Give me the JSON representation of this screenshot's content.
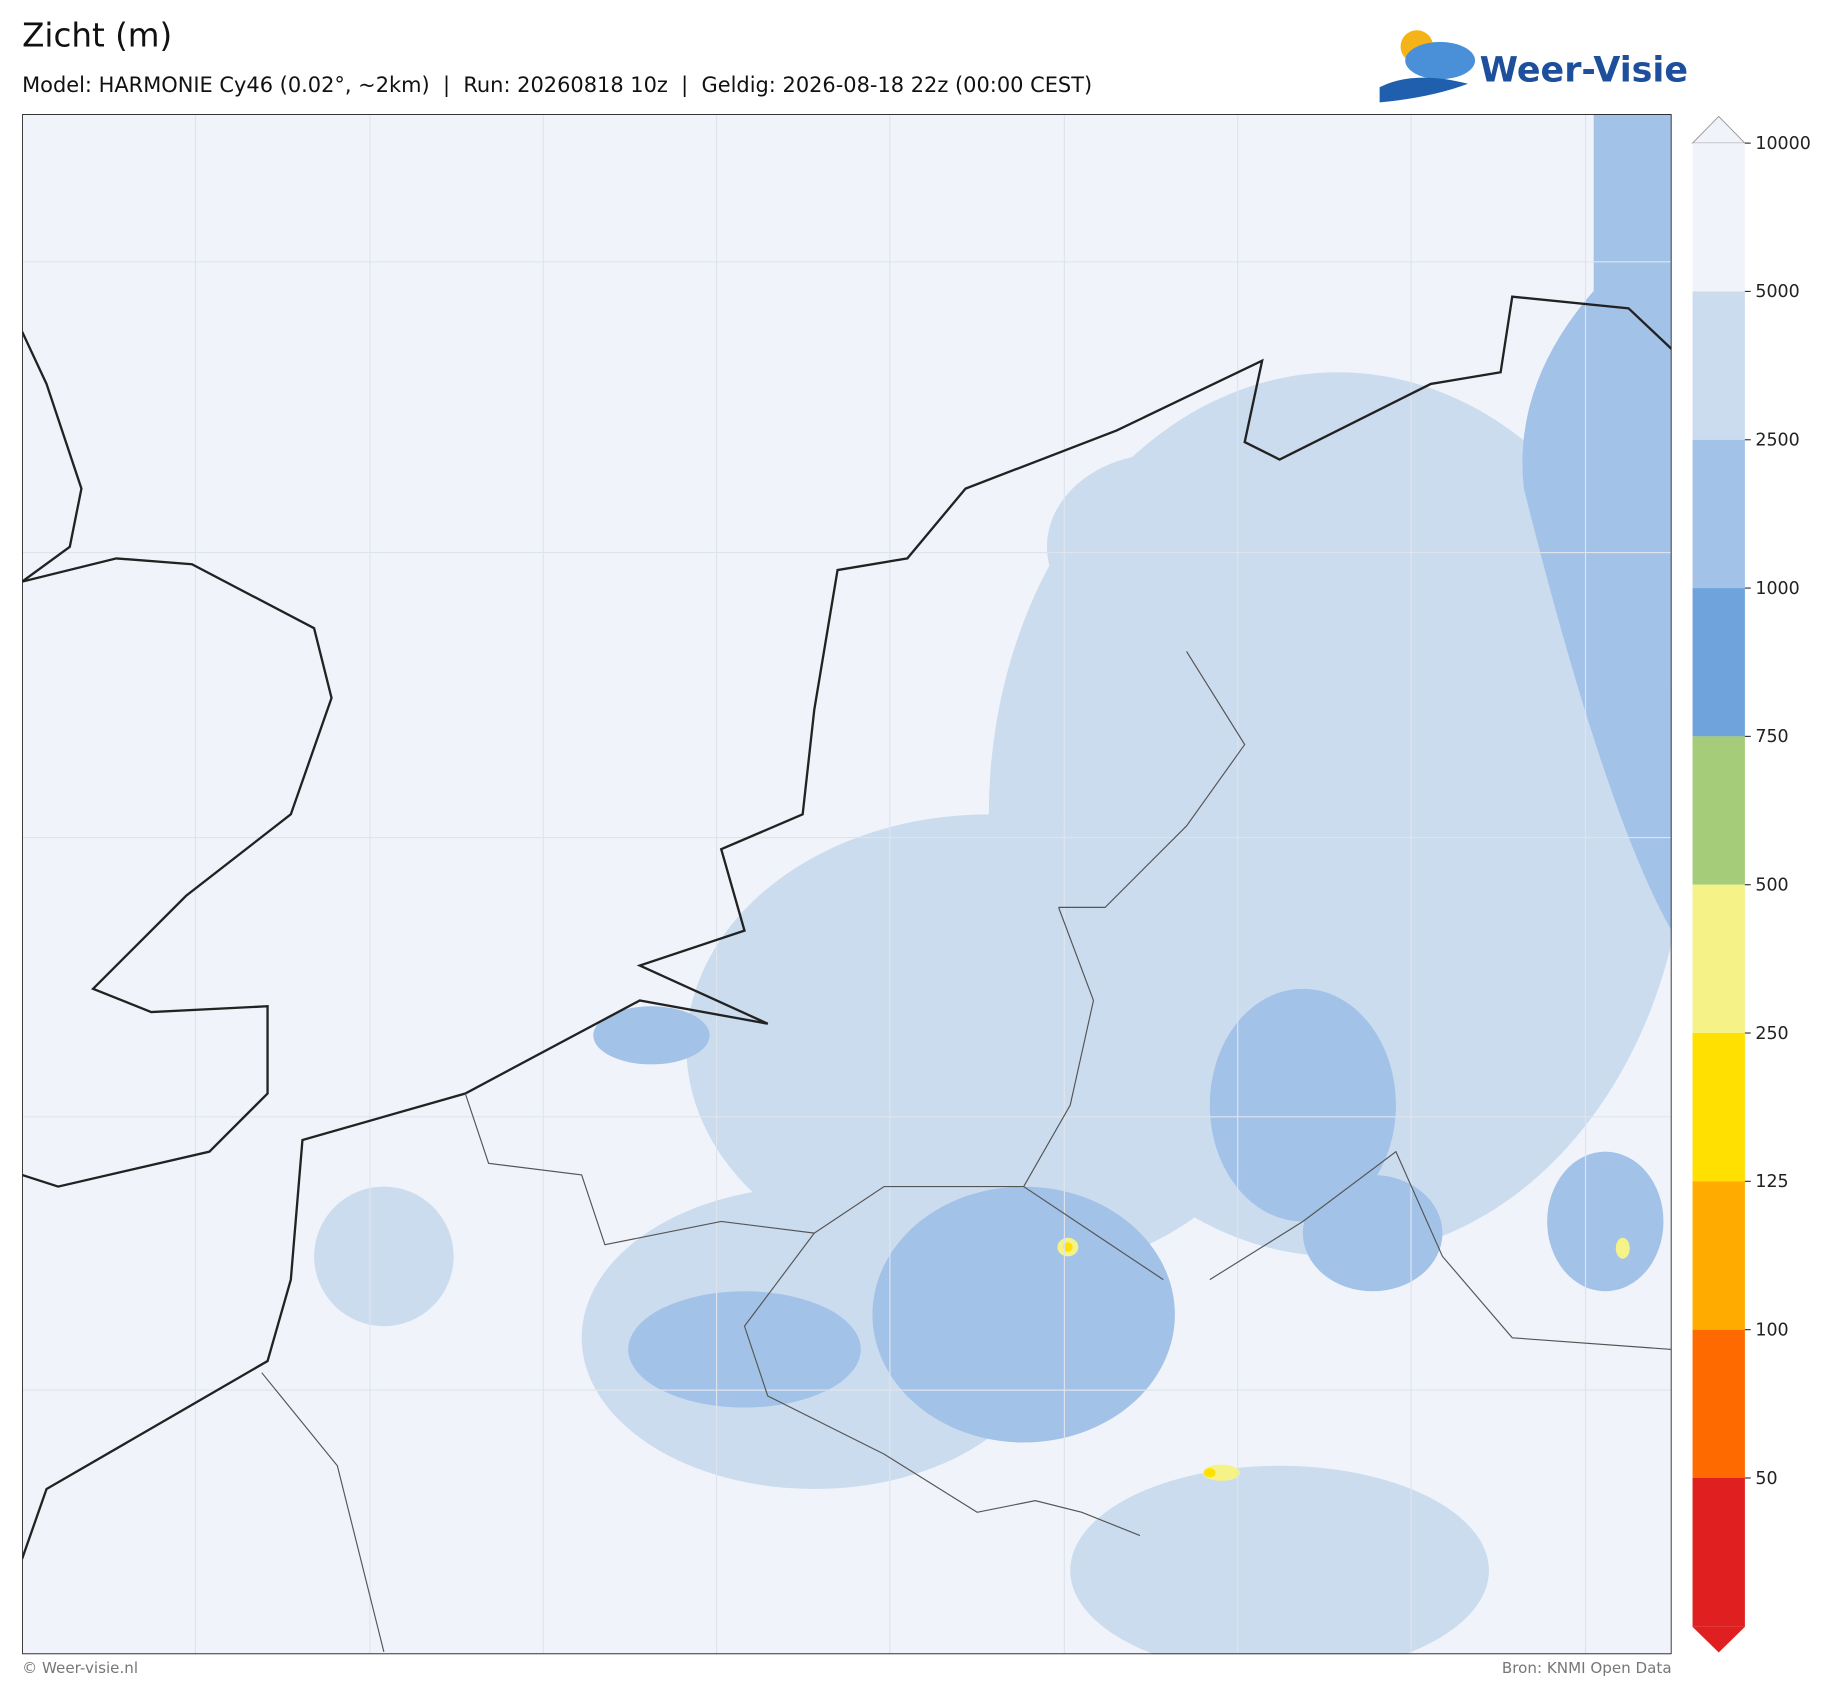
{
  "header": {
    "title": "Zicht (m)",
    "subtitle": "Model: HARMONIE Cy46 (0.02°, ~2km)  |  Run: 20260818 10z  |  Geldig: 2026-08-18 22z (00:00 CEST)",
    "logo": "Weer-Visie"
  },
  "colorbar": {
    "ticks": [
      10000,
      5000,
      2500,
      1000,
      750,
      500,
      250,
      125,
      100,
      50
    ],
    "colors": [
      "#f0f4fa",
      "#ccdcef",
      "#a3c2e8",
      "#6fa3dc",
      "#a5cc78",
      "#f5f288",
      "#ffe000",
      "#ffab00",
      "#ff6a00",
      "#e02020"
    ]
  },
  "footer": {
    "left": "© Weer-visie.nl",
    "right": "Bron: KNMI Open Data"
  }
}
